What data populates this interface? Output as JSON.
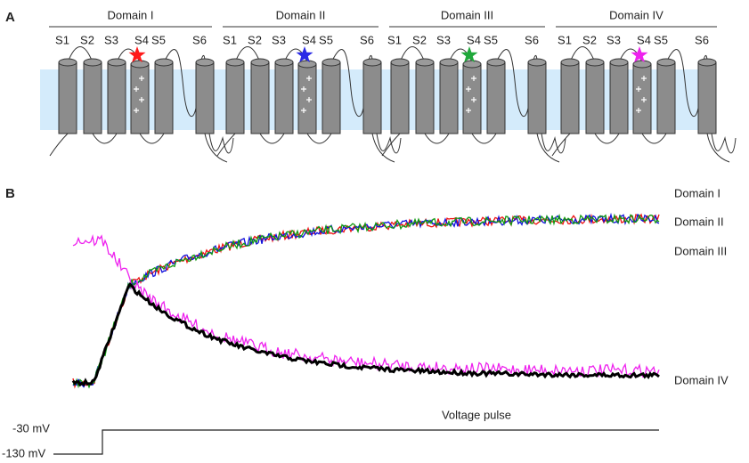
{
  "panel_a": {
    "label": "A",
    "domains": [
      {
        "title": "Domain I",
        "segments": [
          "S1",
          "S2",
          "S3",
          "S4",
          "S5",
          "S6"
        ],
        "color": "#ff1a1a"
      },
      {
        "title": "Domain II",
        "segments": [
          "S1",
          "S2",
          "S3",
          "S4",
          "S5",
          "S6"
        ],
        "color": "#2a2ae6"
      },
      {
        "title": "Domain III",
        "segments": [
          "S1",
          "S2",
          "S3",
          "S4",
          "S5",
          "S6"
        ],
        "color": "#1fa83a"
      },
      {
        "title": "Domain IV",
        "segments": [
          "S1",
          "S2",
          "S3",
          "S4",
          "S5",
          "S6"
        ],
        "color": "#ee22ee"
      }
    ]
  },
  "panel_b": {
    "label": "B",
    "traces": [
      {
        "name": "Domain I",
        "color": "#ee1111"
      },
      {
        "name": "Domain II",
        "color": "#1111dd"
      },
      {
        "name": "Domain III",
        "color": "#119911"
      },
      {
        "name": "Domain IV",
        "color": "#ee22ee"
      }
    ],
    "voltage": {
      "title": "Voltage pulse",
      "levels": [
        "-30 mV",
        "-130 mV"
      ]
    }
  }
}
